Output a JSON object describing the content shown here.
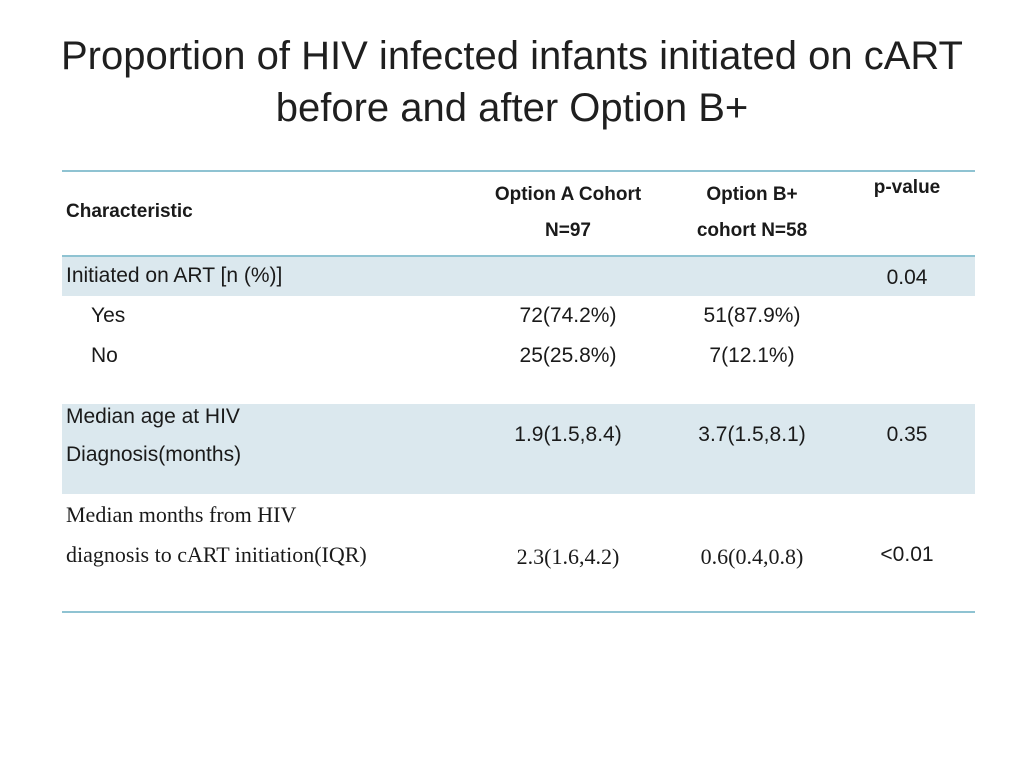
{
  "title": "Proportion of HIV infected infants initiated on cART before and after Option B+",
  "table": {
    "headers": {
      "characteristic": "Characteristic",
      "option_a_line1": "Option A Cohort",
      "option_a_line2": "N=97",
      "option_b_line1": "Option B+",
      "option_b_line2": "cohort N=58",
      "p_value": "p-value"
    },
    "rows": {
      "initiated": {
        "label": "Initiated on ART [n (%)]",
        "p_value": "0.04",
        "yes": {
          "label": "Yes",
          "option_a": "72(74.2%)",
          "option_b": "51(87.9%)"
        },
        "no": {
          "label": "No",
          "option_a": "25(25.8%)",
          "option_b": "7(12.1%)"
        }
      },
      "median_age": {
        "label_line1": "Median age at HIV",
        "label_line2": "Diagnosis(months)",
        "option_a": "1.9(1.5,8.4)",
        "option_b": "3.7(1.5,8.1)",
        "p_value": "0.35"
      },
      "median_months": {
        "label_line1": "Median months from HIV",
        "label_line2": "diagnosis to cART initiation(IQR)",
        "option_a": "2.3(1.6,4.2)",
        "option_b": "0.6(0.4,0.8)",
        "p_value": "<0.01"
      }
    }
  },
  "colors": {
    "band": "#dbe8ee",
    "rule": "#8fc3d2"
  }
}
